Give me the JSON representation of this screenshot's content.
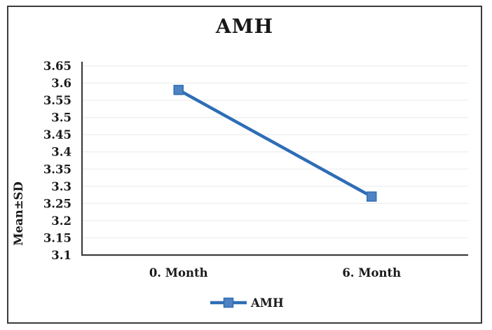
{
  "chart_data": {
    "type": "line",
    "title": "AMH",
    "ylabel": "Mean±SD",
    "xlabel": "",
    "categories": [
      "0. Month",
      "6. Month"
    ],
    "series": [
      {
        "name": "AMH",
        "values": [
          3.58,
          3.27
        ]
      }
    ],
    "ylim": [
      3.1,
      3.65
    ],
    "y_tick_step": 0.05,
    "y_tick_labels": [
      "3.1",
      "3.15",
      "3.2",
      "3.25",
      "3.3",
      "3.35",
      "3.4",
      "3.45",
      "3.5",
      "3.55",
      "3.6",
      "3.65"
    ],
    "grid": "horizontal-only",
    "legend_position": "bottom-center",
    "legend_label": "AMH",
    "colors": {
      "line": "#2e6db6",
      "marker_fill": "#4e82c3",
      "marker_stroke": "#2e6db6",
      "axis": "#3d3d3d",
      "gridline": "#efefef",
      "text": "#1a1a1a",
      "frame_border": "#3b3b3b",
      "background": "#ffffff"
    }
  }
}
